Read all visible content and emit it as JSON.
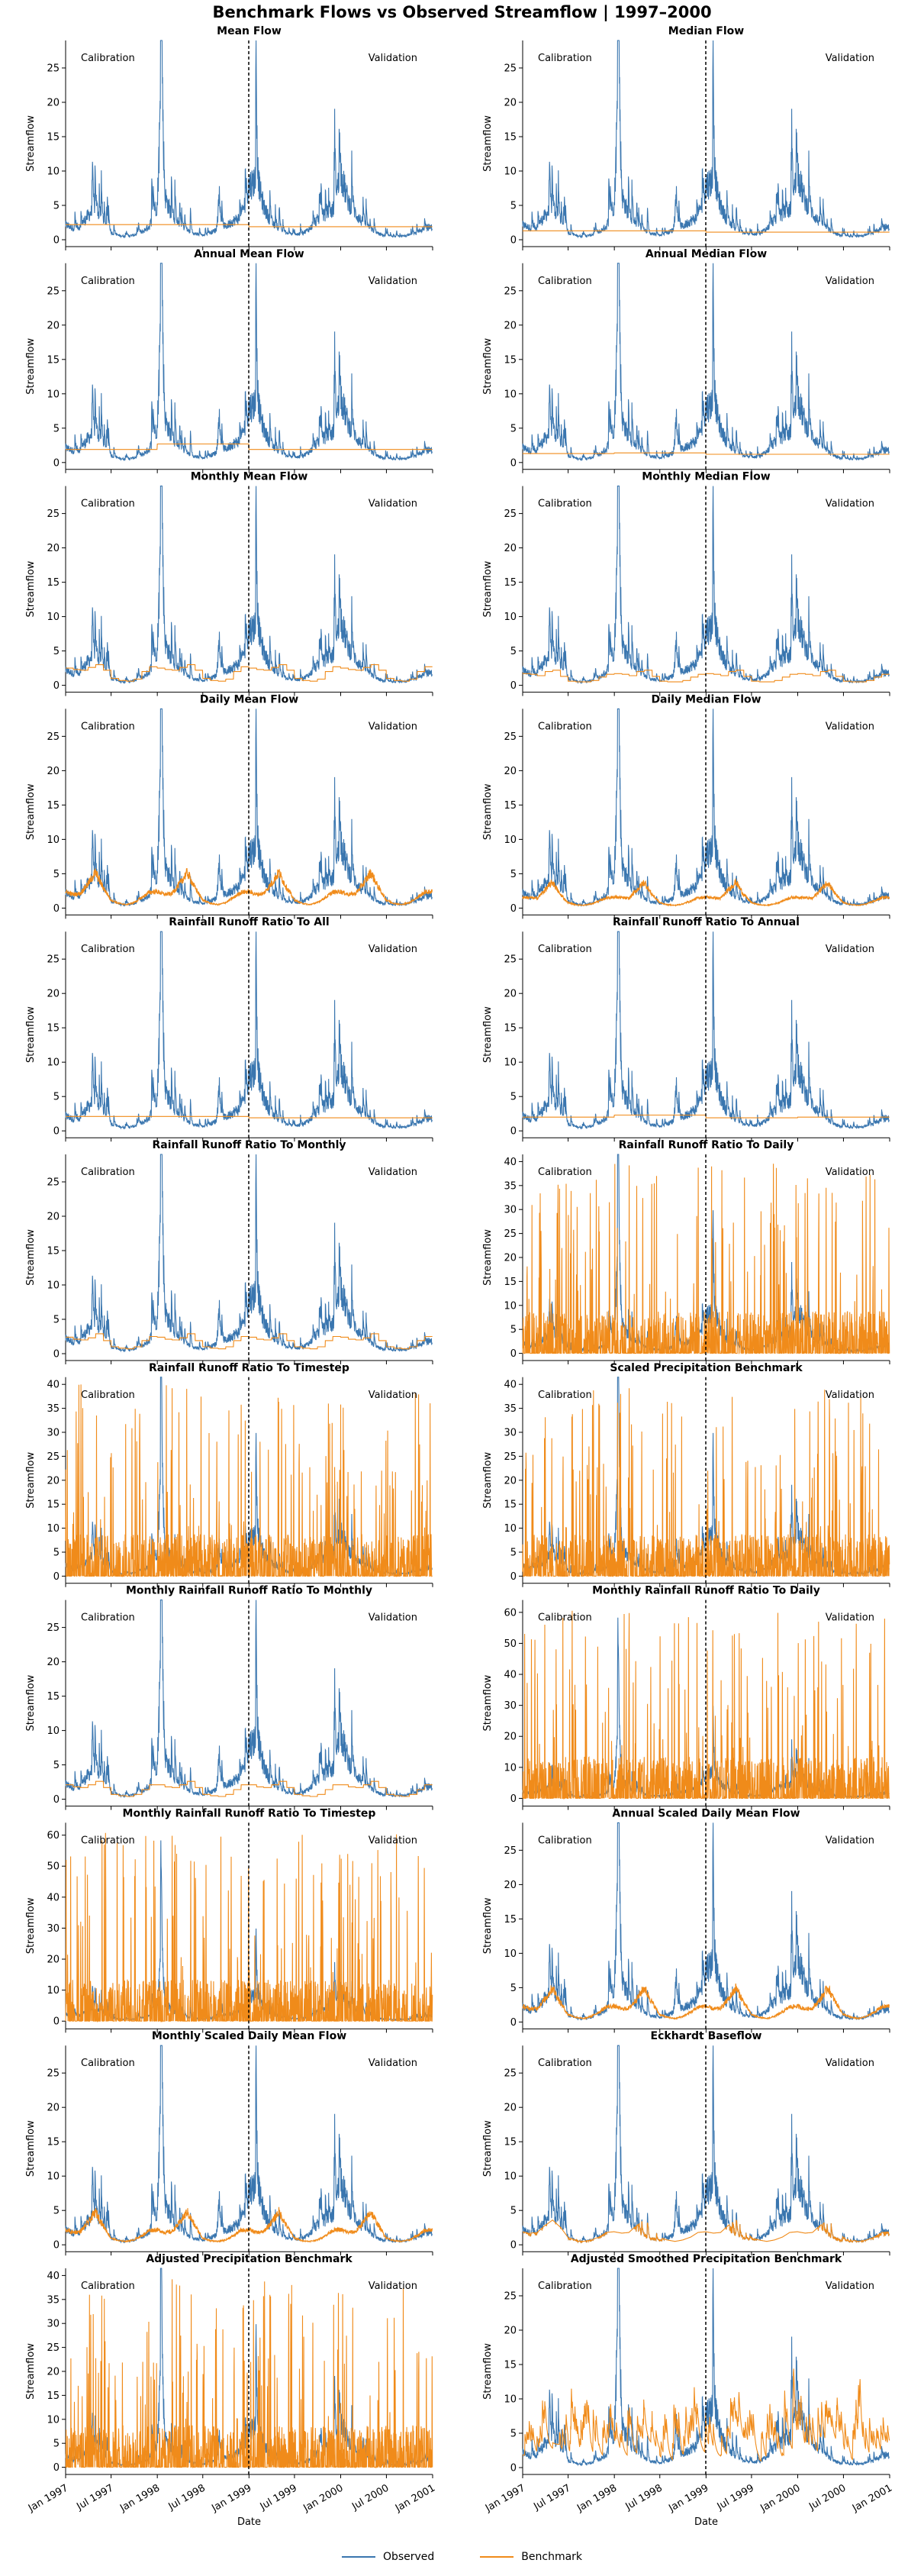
{
  "figure": {
    "title": "Benchmark Flows vs Observed Streamflow  |  1997–2000",
    "colors": {
      "observed": "#3a76af",
      "benchmark": "#f08b1a",
      "split_line": "#000000"
    },
    "legend": {
      "placement": "bottom-center",
      "observed_label": "Observed",
      "benchmark_label": "Benchmark"
    }
  },
  "chart_data": {
    "type": "line",
    "x_range": [
      "1997-01-01",
      "2001-01-01"
    ],
    "x_ticks": [
      "Jan 1997",
      "Jul 1997",
      "Jan 1998",
      "Jul 1998",
      "Jan 1999",
      "Jul 1999",
      "Jan 2000",
      "Jul 2000",
      "Jan 2001"
    ],
    "split_date": "1998-12-31",
    "period_labels": {
      "calibration": "Calibration",
      "validation": "Validation"
    },
    "ylabel": "Streamflow",
    "xlabel": "Date",
    "observed_series": {
      "name": "Observed",
      "dates": [
        "1997-01-01",
        "1997-02-01",
        "1997-03-01",
        "1997-04-01",
        "1997-05-01",
        "1997-06-01",
        "1997-07-01",
        "1997-08-01",
        "1997-09-01",
        "1997-10-01",
        "1997-11-01",
        "1997-12-01",
        "1998-01-01",
        "1998-01-15",
        "1998-02-01",
        "1998-03-01",
        "1998-04-01",
        "1998-05-01",
        "1998-06-01",
        "1998-07-01",
        "1998-08-01",
        "1998-09-01",
        "1998-10-01",
        "1998-11-01",
        "1998-12-01",
        "1999-01-01",
        "1999-02-01",
        "1999-03-01",
        "1999-04-01",
        "1999-05-01",
        "1999-06-01",
        "1999-07-01",
        "1999-08-01",
        "1999-09-01",
        "1999-10-01",
        "1999-11-01",
        "1999-12-01",
        "2000-01-01",
        "2000-02-01",
        "2000-03-01",
        "2000-04-01",
        "2000-05-01",
        "2000-06-01",
        "2000-07-01",
        "2000-08-01",
        "2000-09-01",
        "2000-10-01",
        "2000-11-01",
        "2000-12-01"
      ],
      "values": [
        2.8,
        2.2,
        2.5,
        4.6,
        5.9,
        3.5,
        1.3,
        0.8,
        0.6,
        0.9,
        1.4,
        2.6,
        6.5,
        27.3,
        8.0,
        4.6,
        2.8,
        1.7,
        1.1,
        0.8,
        1.3,
        2.1,
        2.5,
        3.6,
        4.2,
        10.2,
        11.5,
        6.2,
        3.1,
        1.9,
        1.2,
        0.9,
        1.2,
        2.1,
        3.8,
        4.6,
        5.5,
        12.2,
        7.1,
        4.8,
        3.0,
        1.8,
        1.1,
        0.7,
        0.5,
        0.6,
        0.9,
        1.3,
        2.3
      ]
    },
    "panels": [
      {
        "title": "Mean Flow",
        "ylim": [
          -1,
          29
        ],
        "yticks": [
          0,
          5,
          10,
          15,
          20,
          25
        ],
        "benchmark": {
          "kind": "constant",
          "values": [
            2.2,
            1.9
          ]
        }
      },
      {
        "title": "Median Flow",
        "ylim": [
          -1,
          29
        ],
        "yticks": [
          0,
          5,
          10,
          15,
          20,
          25
        ],
        "benchmark": {
          "kind": "constant",
          "values": [
            1.3,
            1.1
          ]
        }
      },
      {
        "title": "Annual Mean Flow",
        "ylim": [
          -1,
          29
        ],
        "yticks": [
          0,
          5,
          10,
          15,
          20,
          25
        ],
        "benchmark": {
          "kind": "annual",
          "values": [
            1.9,
            2.7,
            1.9,
            1.9
          ]
        }
      },
      {
        "title": "Annual Median Flow",
        "ylim": [
          -1,
          29
        ],
        "yticks": [
          0,
          5,
          10,
          15,
          20,
          25
        ],
        "benchmark": {
          "kind": "annual",
          "values": [
            1.3,
            1.4,
            1.2,
            1.2
          ]
        }
      },
      {
        "title": "Monthly Mean Flow",
        "ylim": [
          -1,
          29
        ],
        "yticks": [
          0,
          5,
          10,
          15,
          20,
          25
        ],
        "benchmark": {
          "kind": "monthly",
          "values": [
            2.5,
            2.3,
            2.2,
            2.6,
            3.0,
            2.2,
            1.0,
            0.7,
            0.6,
            0.9,
            2.0,
            2.7
          ]
        }
      },
      {
        "title": "Monthly Median Flow",
        "ylim": [
          -1,
          29
        ],
        "yticks": [
          0,
          5,
          10,
          15,
          20,
          25
        ],
        "benchmark": {
          "kind": "monthly",
          "values": [
            1.7,
            1.6,
            1.4,
            2.0,
            2.2,
            1.3,
            0.6,
            0.5,
            0.5,
            0.7,
            1.2,
            1.6
          ]
        }
      },
      {
        "title": "Daily Mean Flow",
        "ylim": [
          -1,
          29
        ],
        "yticks": [
          0,
          5,
          10,
          15,
          20,
          25
        ],
        "benchmark": {
          "kind": "daily",
          "values": [
            2.4,
            2.0,
            2.1,
            3.5,
            5.2,
            3.0,
            1.2,
            0.7,
            0.5,
            0.8,
            1.5,
            2.3
          ]
        }
      },
      {
        "title": "Daily Median Flow",
        "ylim": [
          -1,
          29
        ],
        "yticks": [
          0,
          5,
          10,
          15,
          20,
          25
        ],
        "benchmark": {
          "kind": "daily",
          "values": [
            1.6,
            1.5,
            1.4,
            2.6,
            3.8,
            2.0,
            0.8,
            0.5,
            0.4,
            0.6,
            1.0,
            1.5
          ]
        }
      },
      {
        "title": "Rainfall Runoff Ratio To All",
        "ylim": [
          -1,
          29
        ],
        "yticks": [
          0,
          5,
          10,
          15,
          20,
          25
        ],
        "benchmark": {
          "kind": "constant",
          "values": [
            2.1,
            1.9
          ]
        }
      },
      {
        "title": "Rainfall Runoff Ratio To Annual",
        "ylim": [
          -1,
          29
        ],
        "yticks": [
          0,
          5,
          10,
          15,
          20,
          25
        ],
        "benchmark": {
          "kind": "annual",
          "values": [
            2.0,
            2.3,
            1.9,
            2.0
          ]
        }
      },
      {
        "title": "Rainfall Runoff Ratio To Monthly",
        "ylim": [
          -1,
          29
        ],
        "yticks": [
          0,
          5,
          10,
          15,
          20,
          25
        ],
        "benchmark": {
          "kind": "monthly",
          "values": [
            2.4,
            2.1,
            2.0,
            2.3,
            2.9,
            1.9,
            1.0,
            0.8,
            0.7,
            1.0,
            1.9,
            2.5
          ]
        }
      },
      {
        "title": "Rainfall Runoff Ratio To Daily",
        "ylim": [
          -1.5,
          41.5
        ],
        "yticks": [
          0,
          5,
          10,
          15,
          20,
          25,
          30,
          35,
          40
        ],
        "benchmark": {
          "kind": "spiky",
          "peak": 40
        }
      },
      {
        "title": "Rainfall Runoff Ratio To Timestep",
        "ylim": [
          -1.5,
          41.5
        ],
        "yticks": [
          0,
          5,
          10,
          15,
          20,
          25,
          30,
          35,
          40
        ],
        "benchmark": {
          "kind": "spiky",
          "peak": 40
        }
      },
      {
        "title": "Scaled Precipitation Benchmark",
        "ylim": [
          -1.5,
          41.5
        ],
        "yticks": [
          0,
          5,
          10,
          15,
          20,
          25,
          30,
          35,
          40
        ],
        "benchmark": {
          "kind": "spiky",
          "peak": 40
        }
      },
      {
        "title": "Monthly Rainfall Runoff Ratio To Monthly",
        "ylim": [
          -1,
          29
        ],
        "yticks": [
          0,
          5,
          10,
          15,
          20,
          25
        ],
        "benchmark": {
          "kind": "monthly",
          "values": [
            2.1,
            1.8,
            1.7,
            2.1,
            2.6,
            1.7,
            0.7,
            0.5,
            0.4,
            0.7,
            1.4,
            2.1
          ]
        }
      },
      {
        "title": "Monthly Rainfall Runoff Ratio To Daily",
        "ylim": [
          -2.5,
          64
        ],
        "yticks": [
          0,
          10,
          20,
          30,
          40,
          50,
          60
        ],
        "benchmark": {
          "kind": "spiky",
          "peak": 61
        }
      },
      {
        "title": "Monthly Rainfall Runoff Ratio To Timestep",
        "ylim": [
          -2.5,
          64
        ],
        "yticks": [
          0,
          10,
          20,
          30,
          40,
          50,
          60
        ],
        "benchmark": {
          "kind": "spiky",
          "peak": 61
        }
      },
      {
        "title": "Annual Scaled Daily Mean Flow",
        "ylim": [
          -1,
          29
        ],
        "yticks": [
          0,
          5,
          10,
          15,
          20,
          25
        ],
        "benchmark": {
          "kind": "daily",
          "values": [
            2.3,
            1.9,
            2.0,
            3.3,
            5.0,
            2.9,
            1.1,
            0.7,
            0.5,
            0.8,
            1.4,
            2.2
          ]
        }
      },
      {
        "title": "Monthly Scaled Daily Mean Flow",
        "ylim": [
          -1,
          29
        ],
        "yticks": [
          0,
          5,
          10,
          15,
          20,
          25
        ],
        "benchmark": {
          "kind": "daily",
          "values": [
            2.2,
            1.8,
            1.9,
            3.2,
            4.8,
            2.8,
            1.0,
            0.6,
            0.5,
            0.7,
            1.3,
            2.1
          ]
        }
      },
      {
        "title": "Eckhardt Baseflow",
        "ylim": [
          -1,
          29
        ],
        "yticks": [
          0,
          5,
          10,
          15,
          20,
          25
        ],
        "benchmark": {
          "kind": "baseflow",
          "values": [
            1.9,
            1.7,
            1.8,
            2.8,
            3.6,
            2.6,
            1.1,
            0.7,
            0.5,
            0.7,
            1.1,
            1.8
          ]
        }
      },
      {
        "title": "Adjusted Precipitation Benchmark",
        "ylim": [
          -1.5,
          41.5
        ],
        "yticks": [
          0,
          5,
          10,
          15,
          20,
          25,
          30,
          35,
          40
        ],
        "benchmark": {
          "kind": "spiky",
          "peak": 40
        }
      },
      {
        "title": "Adjusted Smoothed Precipitation Benchmark",
        "ylim": [
          -1,
          29
        ],
        "yticks": [
          0,
          5,
          10,
          15,
          20,
          25
        ],
        "benchmark": {
          "kind": "smooth",
          "values": [
            2.6,
            2.1,
            2.4,
            3.6,
            4.8,
            3.0,
            1.6,
            1.0,
            0.9,
            1.3,
            2.0,
            2.8
          ]
        }
      }
    ]
  }
}
